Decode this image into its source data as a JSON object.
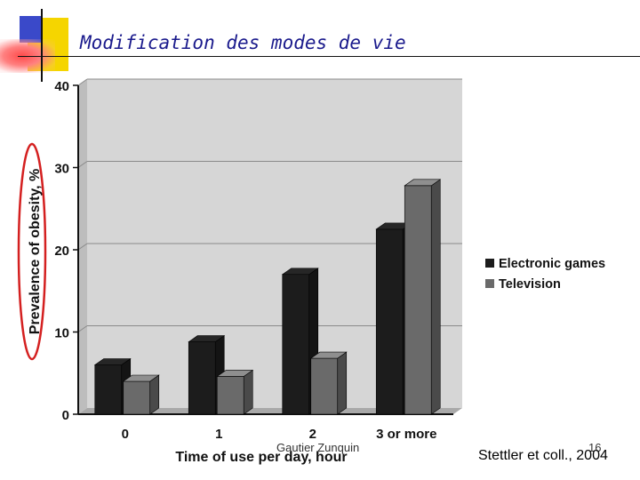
{
  "slide": {
    "title": "Modification des modes de vie",
    "author": "Gautier Zunquin",
    "page_number": "16",
    "citation": "Stettler et coll., 2004"
  },
  "chart_data": {
    "type": "bar",
    "categories": [
      "0",
      "1",
      "2",
      "3 or more"
    ],
    "series": [
      {
        "name": "Electronic games",
        "values": [
          6,
          8.8,
          17,
          22.5
        ],
        "color": "#1c1c1c"
      },
      {
        "name": "Television",
        "values": [
          4,
          4.6,
          6.8,
          27.8
        ],
        "color": "#6a6a6a"
      }
    ],
    "xlabel": "Time of use per day, hour",
    "ylabel": "Prevalence of obesity, %",
    "ylim": [
      0,
      40
    ],
    "yticks": [
      "0",
      "10",
      "20",
      "30",
      "40"
    ],
    "grid": true,
    "legend_position": "right",
    "plot_background": "#d6d6d6",
    "highlight_color": "#d42020"
  }
}
